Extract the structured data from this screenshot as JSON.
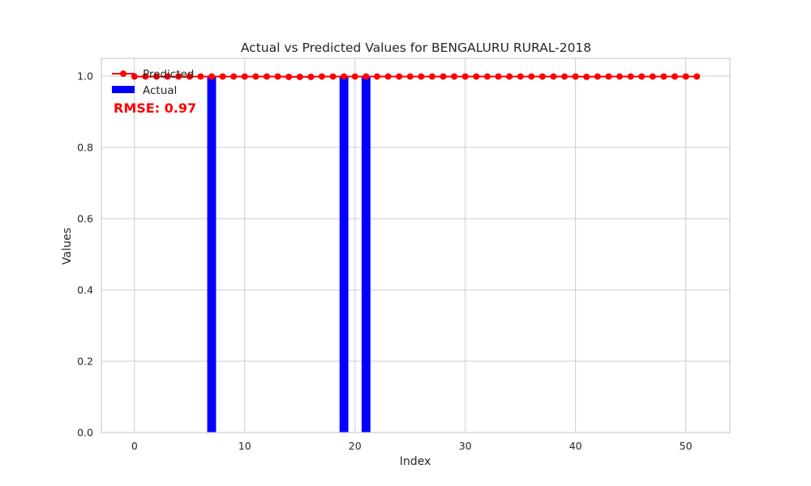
{
  "chart_data": {
    "type": "bar",
    "title": "Actual vs Predicted Values for BENGALURU RURAL-2018",
    "xlabel": "Index",
    "ylabel": "Values",
    "xlim": [
      -3,
      54
    ],
    "ylim": [
      0,
      1.05
    ],
    "xticks": [
      0,
      10,
      20,
      30,
      40,
      50
    ],
    "yticks": [
      0.0,
      0.2,
      0.4,
      0.6,
      0.8,
      1.0
    ],
    "grid": true,
    "legend_position": "top-left",
    "annotation": "RMSE: 0.97",
    "series": [
      {
        "name": "Actual",
        "type": "bar",
        "color": "#0000ff",
        "x": [
          0,
          1,
          2,
          3,
          4,
          5,
          6,
          7,
          8,
          9,
          10,
          11,
          12,
          13,
          14,
          15,
          16,
          17,
          18,
          19,
          20,
          21,
          22,
          23,
          24,
          25,
          26,
          27,
          28,
          29,
          30,
          31,
          32,
          33,
          34,
          35,
          36,
          37,
          38,
          39,
          40,
          41,
          42,
          43,
          44,
          45,
          46,
          47,
          48,
          49,
          50,
          51
        ],
        "values": [
          0,
          0,
          0,
          0,
          0,
          0,
          0,
          1,
          0,
          0,
          0,
          0,
          0,
          0,
          0,
          0,
          0,
          0,
          0,
          1,
          0,
          1,
          0,
          0,
          0,
          0,
          0,
          0,
          0,
          0,
          0,
          0,
          0,
          0,
          0,
          0,
          0,
          0,
          0,
          0,
          0,
          0,
          0,
          0,
          0,
          0,
          0,
          0,
          0,
          0,
          0,
          0
        ]
      },
      {
        "name": "Predicted",
        "type": "line",
        "color": "#ff0000",
        "x": [
          0,
          1,
          2,
          3,
          4,
          5,
          6,
          7,
          8,
          9,
          10,
          11,
          12,
          13,
          14,
          15,
          16,
          17,
          18,
          19,
          20,
          21,
          22,
          23,
          24,
          25,
          26,
          27,
          28,
          29,
          30,
          31,
          32,
          33,
          34,
          35,
          36,
          37,
          38,
          39,
          40,
          41,
          42,
          43,
          44,
          45,
          46,
          47,
          48,
          49,
          50,
          51
        ],
        "values": [
          0.999,
          0.999,
          0.999,
          0.999,
          0.999,
          0.999,
          0.999,
          0.999,
          0.999,
          0.999,
          0.999,
          0.999,
          0.999,
          0.999,
          0.998,
          0.998,
          0.998,
          0.999,
          0.999,
          0.999,
          0.999,
          0.999,
          0.999,
          0.999,
          0.999,
          0.999,
          0.999,
          0.999,
          0.999,
          0.999,
          0.999,
          0.999,
          0.999,
          0.999,
          0.999,
          0.999,
          0.999,
          0.999,
          0.999,
          0.999,
          0.999,
          0.998,
          0.999,
          0.999,
          0.999,
          0.999,
          0.999,
          0.999,
          0.999,
          0.999,
          0.999,
          0.999
        ]
      }
    ]
  },
  "colors": {
    "annotation": "#ff0000",
    "grid": "#cccccc",
    "frame": "#cccccc",
    "text": "#262626"
  }
}
